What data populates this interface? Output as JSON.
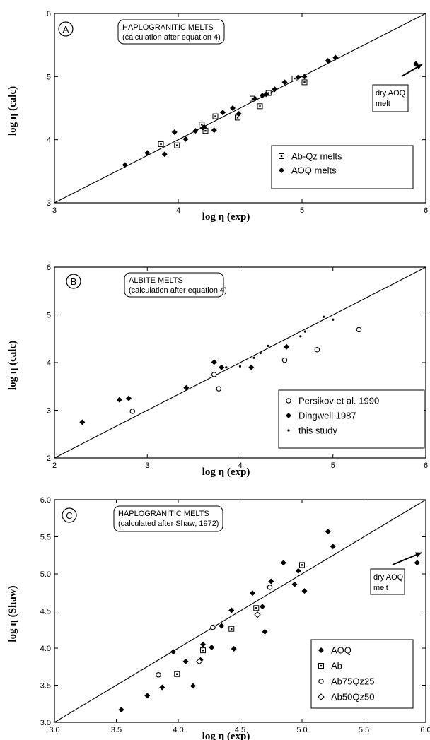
{
  "panels": [
    {
      "letter": "A",
      "title_lines": [
        "HAPLOGRANITIC MELTS",
        "(calculation after equation 4)"
      ],
      "xlabel": "log η (exp)",
      "ylabel": "log η (calc)",
      "annotation_lines": [
        "dry AOQ",
        "melt"
      ],
      "legend": [
        {
          "label": "Ab-Qz melts",
          "marker": "open-square"
        },
        {
          "label": "AOQ melts",
          "marker": "filled-diamond"
        }
      ]
    },
    {
      "letter": "B",
      "title_lines": [
        "ALBITE MELTS",
        "(calculation after equation 4)"
      ],
      "xlabel": "log η (exp)",
      "ylabel": "log η (calc)",
      "annotation_lines": [],
      "legend": [
        {
          "label": "Persikov et al. 1990",
          "marker": "open-circle"
        },
        {
          "label": "Dingwell 1987",
          "marker": "filled-diamond"
        },
        {
          "label": "this study",
          "marker": "small-dot"
        }
      ]
    },
    {
      "letter": "C",
      "title_lines": [
        "HAPLOGRANITIC MELTS",
        "(calculated after Shaw, 1972)"
      ],
      "xlabel": "log η (exp)",
      "ylabel": "log η (Shaw)",
      "annotation_lines": [
        "dry AOQ",
        "melt"
      ],
      "legend": [
        {
          "label": "AOQ",
          "marker": "filled-diamond"
        },
        {
          "label": "Ab",
          "marker": "open-square"
        },
        {
          "label": "Ab75Qz25",
          "marker": "open-circle"
        },
        {
          "label": "Ab50Qz50",
          "marker": "open-diamond"
        }
      ]
    }
  ],
  "chart_data": [
    {
      "type": "scatter",
      "title": "HAPLOGRANITIC MELTS (calculation after equation 4)",
      "xlabel": "log η (exp)",
      "ylabel": "log η (calc)",
      "xlim": [
        3,
        6
      ],
      "ylim": [
        3,
        6
      ],
      "xticks": [
        "3",
        "4",
        "5",
        "6"
      ],
      "yticks": [
        "3",
        "4",
        "5",
        "6"
      ],
      "reference_line": "1:1",
      "legend_position": "bottom-right",
      "series": [
        {
          "name": "Ab-Qz melts",
          "marker": "open-square",
          "points": [
            [
              3.86,
              3.93
            ],
            [
              3.99,
              3.91
            ],
            [
              4.19,
              4.24
            ],
            [
              4.22,
              4.14
            ],
            [
              4.3,
              4.37
            ],
            [
              4.48,
              4.35
            ],
            [
              4.6,
              4.65
            ],
            [
              4.66,
              4.53
            ],
            [
              4.73,
              4.74
            ],
            [
              4.94,
              4.97
            ],
            [
              5.02,
              4.91
            ]
          ]
        },
        {
          "name": "AOQ melts",
          "marker": "filled-diamond",
          "points": [
            [
              3.57,
              3.6
            ],
            [
              3.75,
              3.79
            ],
            [
              3.89,
              3.77
            ],
            [
              3.97,
              4.12
            ],
            [
              4.06,
              4.01
            ],
            [
              4.14,
              4.14
            ],
            [
              4.2,
              4.19
            ],
            [
              4.21,
              4.2
            ],
            [
              4.29,
              4.15
            ],
            [
              4.36,
              4.43
            ],
            [
              4.44,
              4.5
            ],
            [
              4.49,
              4.41
            ],
            [
              4.62,
              4.65
            ],
            [
              4.68,
              4.7
            ],
            [
              4.71,
              4.72
            ],
            [
              4.78,
              4.8
            ],
            [
              4.86,
              4.91
            ],
            [
              4.97,
              4.99
            ],
            [
              5.02,
              5.0
            ],
            [
              5.21,
              5.25
            ],
            [
              5.27,
              5.3
            ],
            [
              5.92,
              5.2
            ]
          ]
        }
      ]
    },
    {
      "type": "scatter",
      "title": "ALBITE MELTS (calculation after equation 4)",
      "xlabel": "log η (exp)",
      "ylabel": "log η (calc)",
      "xlim": [
        2,
        6
      ],
      "ylim": [
        2,
        6
      ],
      "xticks": [
        "2",
        "3",
        "4",
        "5",
        "6"
      ],
      "yticks": [
        "2",
        "3",
        "4",
        "5",
        "6"
      ],
      "reference_line": "1:1",
      "legend_position": "bottom-right",
      "series": [
        {
          "name": "Persikov et al. 1990",
          "marker": "open-circle",
          "points": [
            [
              2.84,
              2.98
            ],
            [
              3.72,
              3.75
            ],
            [
              3.77,
              3.45
            ],
            [
              4.48,
              4.05
            ],
            [
              4.83,
              4.27
            ],
            [
              5.28,
              4.69
            ]
          ]
        },
        {
          "name": "Dingwell 1987",
          "marker": "filled-diamond",
          "points": [
            [
              2.3,
              2.75
            ],
            [
              2.7,
              3.22
            ],
            [
              2.8,
              3.25
            ],
            [
              3.42,
              3.47
            ],
            [
              3.72,
              4.01
            ],
            [
              3.8,
              3.9
            ],
            [
              4.12,
              3.9
            ],
            [
              4.5,
              4.33
            ]
          ]
        },
        {
          "name": "this study",
          "marker": "small-dot",
          "points": [
            [
              3.85,
              3.9
            ],
            [
              4.0,
              3.92
            ],
            [
              4.15,
              4.1
            ],
            [
              4.22,
              4.2
            ],
            [
              4.3,
              4.35
            ],
            [
              4.48,
              4.32
            ],
            [
              4.65,
              4.55
            ],
            [
              4.7,
              4.65
            ],
            [
              4.9,
              4.96
            ],
            [
              5.0,
              4.9
            ]
          ]
        }
      ]
    },
    {
      "type": "scatter",
      "title": "HAPLOGRANITIC MELTS (calculated after Shaw, 1972)",
      "xlabel": "log η (exp)",
      "ylabel": "log η (Shaw)",
      "xlim": [
        3.0,
        6.0
      ],
      "ylim": [
        3.0,
        6.0
      ],
      "xticks": [
        "3.0",
        "3.5",
        "4.0",
        "4.5",
        "5.0",
        "5.5",
        "6.0"
      ],
      "yticks": [
        "3.0",
        "3.5",
        "4.0",
        "4.5",
        "5.0",
        "5.5",
        "6.0"
      ],
      "reference_line": "1:1",
      "legend_position": "bottom-right",
      "series": [
        {
          "name": "AOQ",
          "marker": "filled-diamond",
          "points": [
            [
              3.54,
              3.17
            ],
            [
              3.75,
              3.36
            ],
            [
              3.87,
              3.47
            ],
            [
              3.96,
              3.95
            ],
            [
              4.06,
              3.82
            ],
            [
              4.12,
              3.49
            ],
            [
              4.18,
              3.84
            ],
            [
              4.2,
              4.05
            ],
            [
              4.27,
              4.01
            ],
            [
              4.35,
              4.3
            ],
            [
              4.43,
              4.51
            ],
            [
              4.45,
              3.99
            ],
            [
              4.6,
              4.74
            ],
            [
              4.68,
              4.56
            ],
            [
              4.7,
              4.22
            ],
            [
              4.75,
              4.9
            ],
            [
              4.85,
              5.15
            ],
            [
              4.94,
              4.86
            ],
            [
              4.97,
              5.04
            ],
            [
              5.02,
              4.77
            ],
            [
              5.21,
              5.57
            ],
            [
              5.25,
              5.37
            ],
            [
              5.93,
              5.15
            ]
          ]
        },
        {
          "name": "Ab",
          "marker": "open-square",
          "points": [
            [
              3.99,
              3.65
            ],
            [
              4.2,
              3.97
            ],
            [
              4.43,
              4.26
            ],
            [
              4.63,
              4.54
            ],
            [
              5.0,
              5.12
            ]
          ]
        },
        {
          "name": "Ab75Qz25",
          "marker": "open-circle",
          "points": [
            [
              3.84,
              3.64
            ],
            [
              4.28,
              4.28
            ],
            [
              4.74,
              4.82
            ]
          ]
        },
        {
          "name": "Ab50Qz50",
          "marker": "open-diamond",
          "points": [
            [
              4.17,
              3.82
            ],
            [
              4.64,
              4.45
            ]
          ]
        }
      ]
    }
  ]
}
